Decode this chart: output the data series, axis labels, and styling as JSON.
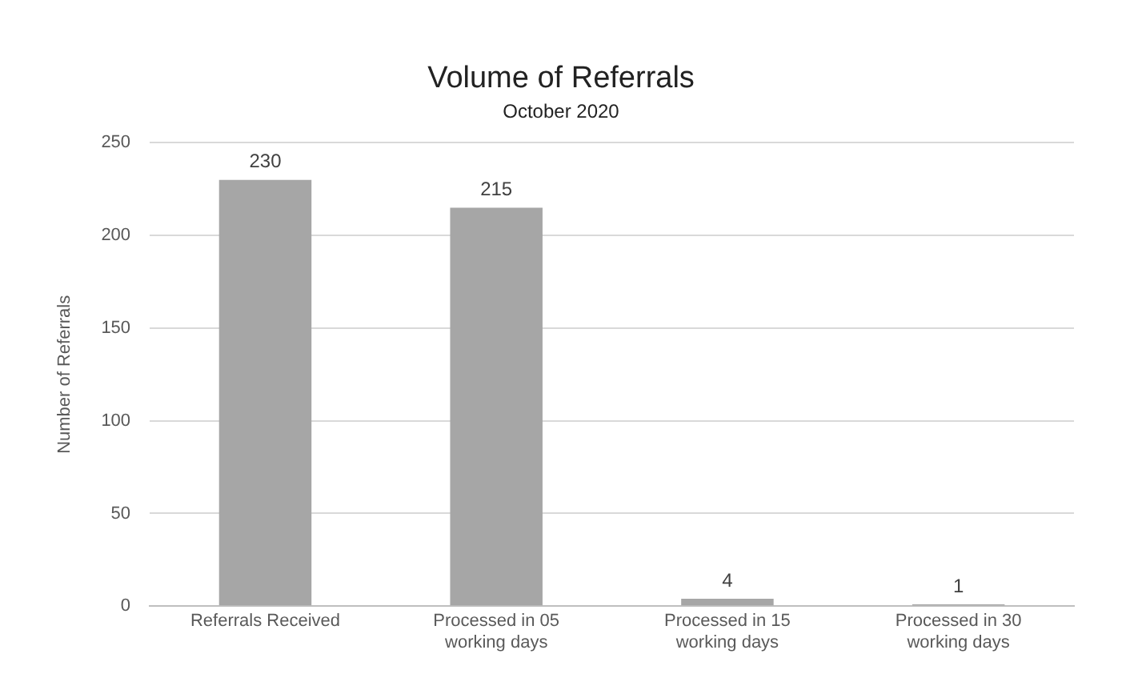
{
  "chart_data": {
    "type": "bar",
    "title": "Volume of Referrals",
    "subtitle": "October 2020",
    "ylabel": "Number of Referrals",
    "categories": [
      "Referrals Received",
      "Processed in 05 working days",
      "Processed in 15 working days",
      "Processed in 30 working days"
    ],
    "values": [
      230,
      215,
      4,
      1
    ],
    "color": "#a6a6a6",
    "ylim": [
      0,
      250
    ],
    "yticks": [
      0,
      50,
      100,
      150,
      200,
      250
    ],
    "grid": "y",
    "data_labels": true
  }
}
